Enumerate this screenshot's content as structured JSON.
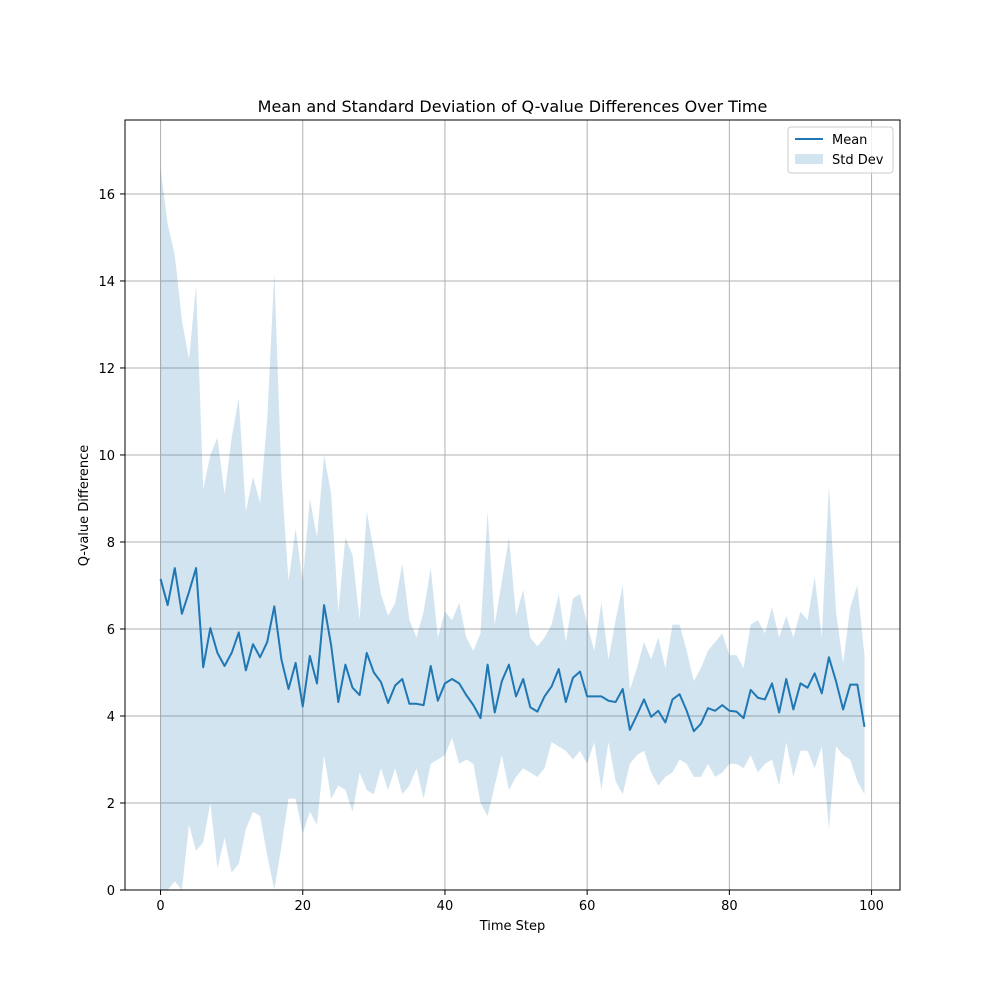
{
  "chart_data": {
    "type": "area",
    "title": "Mean and Standard Deviation of Q-value Differences Over Time",
    "xlabel": "Time Step",
    "ylabel": "Q-value Difference",
    "xlim": [
      -5,
      104
    ],
    "ylim": [
      0,
      17.7
    ],
    "xticks": [
      0,
      20,
      40,
      60,
      80,
      100
    ],
    "yticks": [
      0,
      2,
      4,
      6,
      8,
      10,
      12,
      14,
      16
    ],
    "xtick_labels": [
      "0",
      "20",
      "40",
      "60",
      "80",
      "100"
    ],
    "ytick_labels": [
      "0",
      "2",
      "4",
      "6",
      "8",
      "10",
      "12",
      "14",
      "16"
    ],
    "grid": true,
    "legend_position": "top-right",
    "colors": {
      "mean": "#1f77b4",
      "band": "#1f77b4",
      "grid": "#b0b0b0"
    },
    "x": [
      0,
      1,
      2,
      3,
      4,
      5,
      6,
      7,
      8,
      9,
      10,
      11,
      12,
      13,
      14,
      15,
      16,
      17,
      18,
      19,
      20,
      21,
      22,
      23,
      24,
      25,
      26,
      27,
      28,
      29,
      30,
      31,
      32,
      33,
      34,
      35,
      36,
      37,
      38,
      39,
      40,
      41,
      42,
      43,
      44,
      45,
      46,
      47,
      48,
      49,
      50,
      51,
      52,
      53,
      54,
      55,
      56,
      57,
      58,
      59,
      60,
      61,
      62,
      63,
      64,
      65,
      66,
      67,
      68,
      69,
      70,
      71,
      72,
      73,
      74,
      75,
      76,
      77,
      78,
      79,
      80,
      81,
      82,
      83,
      84,
      85,
      86,
      87,
      88,
      89,
      90,
      91,
      92,
      93,
      94,
      95,
      96,
      97,
      98,
      99
    ],
    "series": [
      {
        "name": "Mean",
        "kind": "line",
        "values": [
          7.15,
          6.55,
          7.4,
          6.35,
          6.85,
          7.4,
          5.12,
          6.02,
          5.45,
          5.15,
          5.45,
          5.92,
          5.05,
          5.65,
          5.35,
          5.7,
          6.52,
          5.3,
          4.62,
          5.22,
          4.22,
          5.38,
          4.75,
          6.55,
          5.62,
          4.32,
          5.18,
          4.65,
          4.48,
          5.45,
          5.0,
          4.78,
          4.3,
          4.7,
          4.85,
          4.28,
          4.28,
          4.25,
          5.15,
          4.35,
          4.75,
          4.85,
          4.75,
          4.48,
          4.25,
          3.95,
          5.18,
          4.08,
          4.8,
          5.18,
          4.45,
          4.85,
          4.2,
          4.1,
          4.45,
          4.68,
          5.08,
          4.32,
          4.88,
          5.02,
          4.45,
          4.45,
          4.45,
          4.35,
          4.32,
          4.62,
          3.68,
          4.02,
          4.38,
          3.98,
          4.12,
          3.85,
          4.38,
          4.5,
          4.12,
          3.65,
          3.82,
          4.18,
          4.12,
          4.25,
          4.12,
          4.1,
          3.95,
          4.6,
          4.42,
          4.38,
          4.75,
          4.08,
          4.85,
          4.15,
          4.75,
          4.65,
          4.98,
          4.52,
          5.35,
          4.8,
          4.15,
          4.72,
          4.72,
          3.75
        ]
      },
      {
        "name": "Std Dev",
        "kind": "band",
        "upper": [
          16.6,
          15.3,
          14.6,
          13.1,
          12.2,
          13.9,
          9.2,
          10.0,
          10.4,
          9.1,
          10.4,
          11.3,
          8.7,
          9.5,
          8.9,
          10.8,
          14.2,
          9.5,
          7.1,
          8.3,
          7.1,
          9.0,
          8.1,
          10.0,
          9.1,
          6.4,
          8.1,
          7.7,
          6.2,
          8.7,
          7.8,
          6.8,
          6.3,
          6.6,
          7.5,
          6.2,
          5.8,
          6.4,
          7.4,
          5.8,
          6.4,
          6.2,
          6.6,
          5.8,
          5.5,
          5.9,
          8.7,
          6.1,
          7.1,
          8.1,
          6.3,
          6.9,
          5.8,
          5.6,
          5.8,
          6.1,
          6.8,
          5.7,
          6.7,
          6.8,
          6.1,
          5.5,
          6.6,
          5.3,
          6.2,
          7.0,
          4.6,
          5.1,
          5.7,
          5.3,
          5.8,
          5.1,
          6.1,
          6.1,
          5.5,
          4.8,
          5.1,
          5.5,
          5.7,
          5.9,
          5.4,
          5.4,
          5.1,
          6.1,
          6.2,
          5.9,
          6.5,
          5.8,
          6.3,
          5.8,
          6.4,
          6.2,
          7.2,
          5.8,
          9.3,
          6.4,
          5.2,
          6.5,
          7.0,
          5.4
        ],
        "lower": [
          -2.3,
          -2.2,
          0.2,
          -0.4,
          1.5,
          0.9,
          1.1,
          2.0,
          0.5,
          1.2,
          0.4,
          0.6,
          1.4,
          1.8,
          1.7,
          0.8,
          -1.2,
          1.0,
          2.1,
          2.1,
          1.3,
          1.8,
          1.5,
          3.1,
          2.1,
          2.4,
          2.3,
          1.8,
          2.7,
          2.3,
          2.2,
          2.8,
          2.3,
          2.8,
          2.2,
          2.4,
          2.8,
          2.1,
          2.9,
          3.0,
          3.1,
          3.5,
          2.9,
          3.0,
          2.9,
          2.0,
          1.7,
          2.4,
          3.1,
          2.3,
          2.6,
          2.8,
          2.7,
          2.6,
          2.8,
          3.4,
          3.3,
          3.2,
          3.0,
          3.2,
          2.9,
          3.4,
          2.3,
          3.4,
          2.5,
          2.2,
          2.9,
          3.1,
          3.2,
          2.7,
          2.4,
          2.6,
          2.7,
          3.0,
          2.9,
          2.6,
          2.6,
          2.9,
          2.6,
          2.7,
          2.9,
          2.9,
          2.8,
          3.1,
          2.7,
          2.9,
          3.0,
          2.4,
          3.4,
          2.6,
          3.2,
          3.2,
          2.8,
          3.3,
          1.4,
          3.3,
          3.1,
          3.0,
          2.5,
          2.2
        ]
      }
    ]
  }
}
